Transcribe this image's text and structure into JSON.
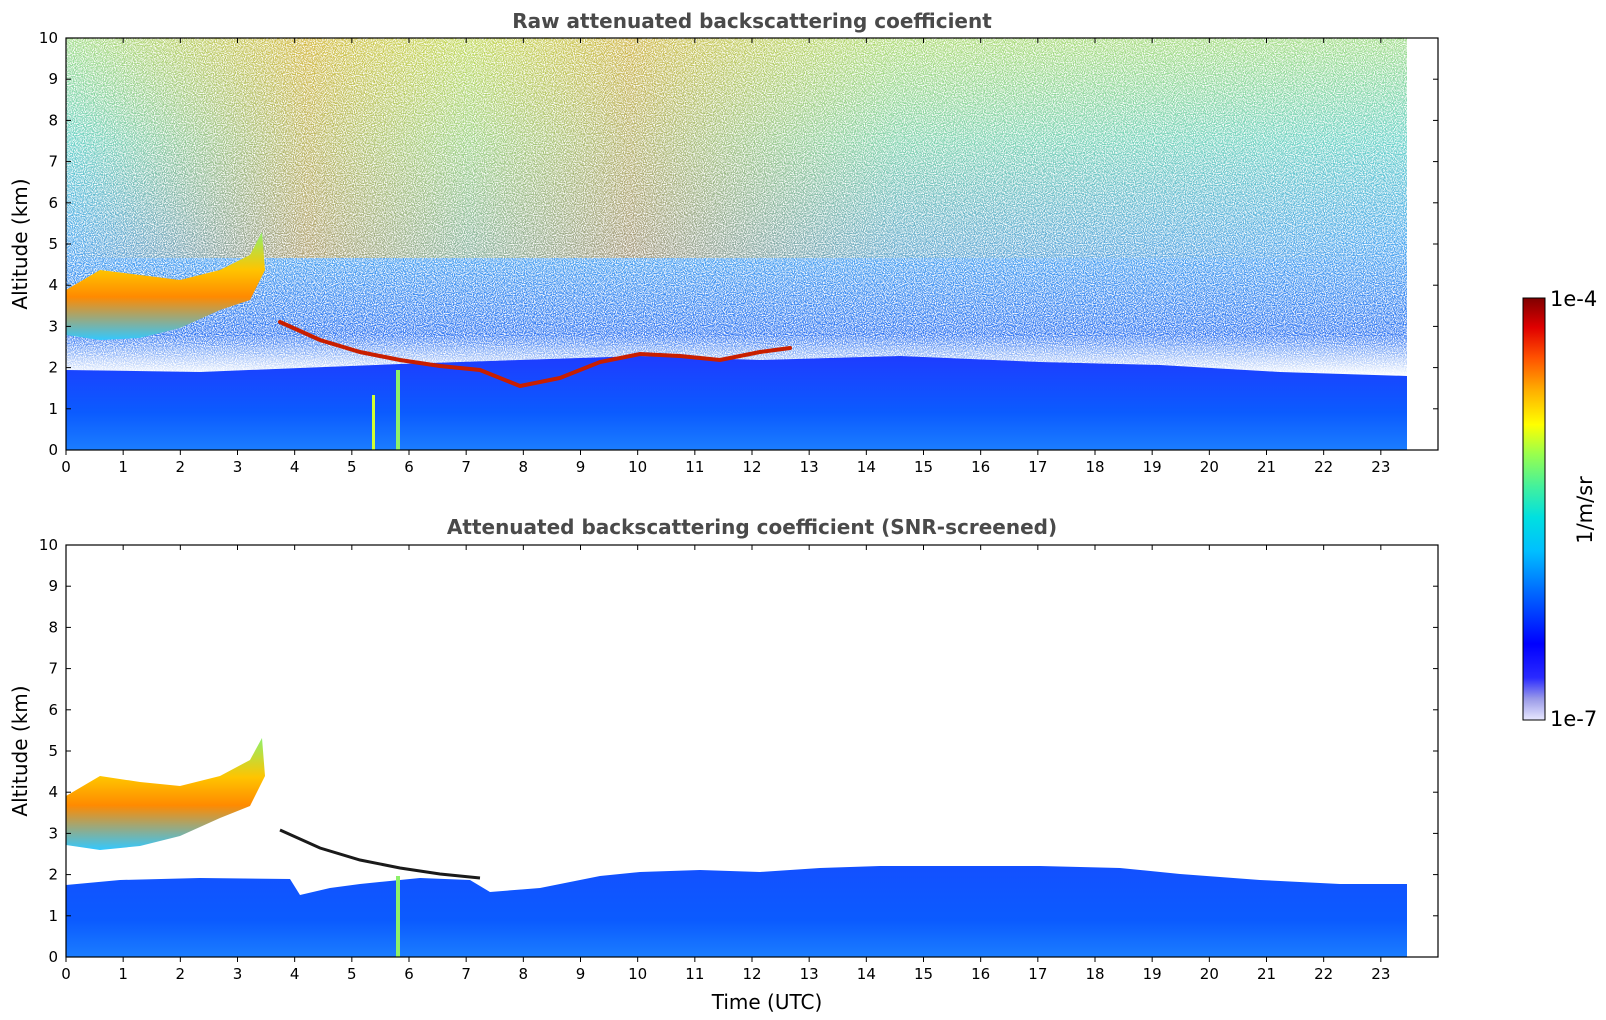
{
  "chart_data": [
    {
      "type": "heatmap",
      "title": "Raw attenuated backscattering coefficient",
      "xlabel": "",
      "ylabel": "Altitude (km)",
      "xlim": [
        0,
        24
      ],
      "ylim": [
        0,
        10
      ],
      "xticks": [
        "0",
        "1",
        "2",
        "3",
        "4",
        "5",
        "6",
        "7",
        "8",
        "9",
        "10",
        "11",
        "12",
        "13",
        "14",
        "15",
        "16",
        "17",
        "18",
        "19",
        "20",
        "21",
        "22",
        "23"
      ],
      "yticks": [
        "0",
        "1",
        "2",
        "3",
        "4",
        "5",
        "6",
        "7",
        "8",
        "9",
        "10"
      ],
      "data_end_time": 23.5,
      "features": [
        {
          "kind": "boundary layer",
          "t": [
            0,
            23.5
          ],
          "top_km": [
            1.8,
            1.6
          ]
        },
        {
          "kind": "aerosol/cloud layer",
          "t": [
            0,
            3.4
          ],
          "alt_km": [
            2.7,
            4.3
          ]
        },
        {
          "kind": "thin cloud layer",
          "t": [
            3.8,
            12.8
          ],
          "alt_km": [
            1.0,
            3.0
          ]
        }
      ]
    },
    {
      "type": "heatmap",
      "title": "Attenuated backscattering coefficient (SNR-screened)",
      "xlabel": "Time (UTC)",
      "ylabel": "Altitude (km)",
      "xlim": [
        0,
        24
      ],
      "ylim": [
        0,
        10
      ],
      "xticks": [
        "0",
        "1",
        "2",
        "3",
        "4",
        "5",
        "6",
        "7",
        "8",
        "9",
        "10",
        "11",
        "12",
        "13",
        "14",
        "15",
        "16",
        "17",
        "18",
        "19",
        "20",
        "21",
        "22",
        "23"
      ],
      "yticks": [
        "0",
        "1",
        "2",
        "3",
        "4",
        "5",
        "6",
        "7",
        "8",
        "9",
        "10"
      ],
      "data_end_time": 23.5
    }
  ],
  "colorbar": {
    "label": "1/m/sr",
    "max_label": "1e-4",
    "min_label": "1e-7",
    "colors": [
      "#e8e8ff",
      "#c6c6f4",
      "#9a9ae8",
      "#6a6aea",
      "#2a2aff",
      "#0000ff",
      "#0030ff",
      "#0066ff",
      "#0099ff",
      "#00ccff",
      "#00e5e5",
      "#33f0b0",
      "#66ff80",
      "#99ff4d",
      "#ccff1a",
      "#ffff00",
      "#ffd000",
      "#ffa000",
      "#ff6a00",
      "#ff3000",
      "#e60000",
      "#b40000",
      "#800000"
    ]
  }
}
